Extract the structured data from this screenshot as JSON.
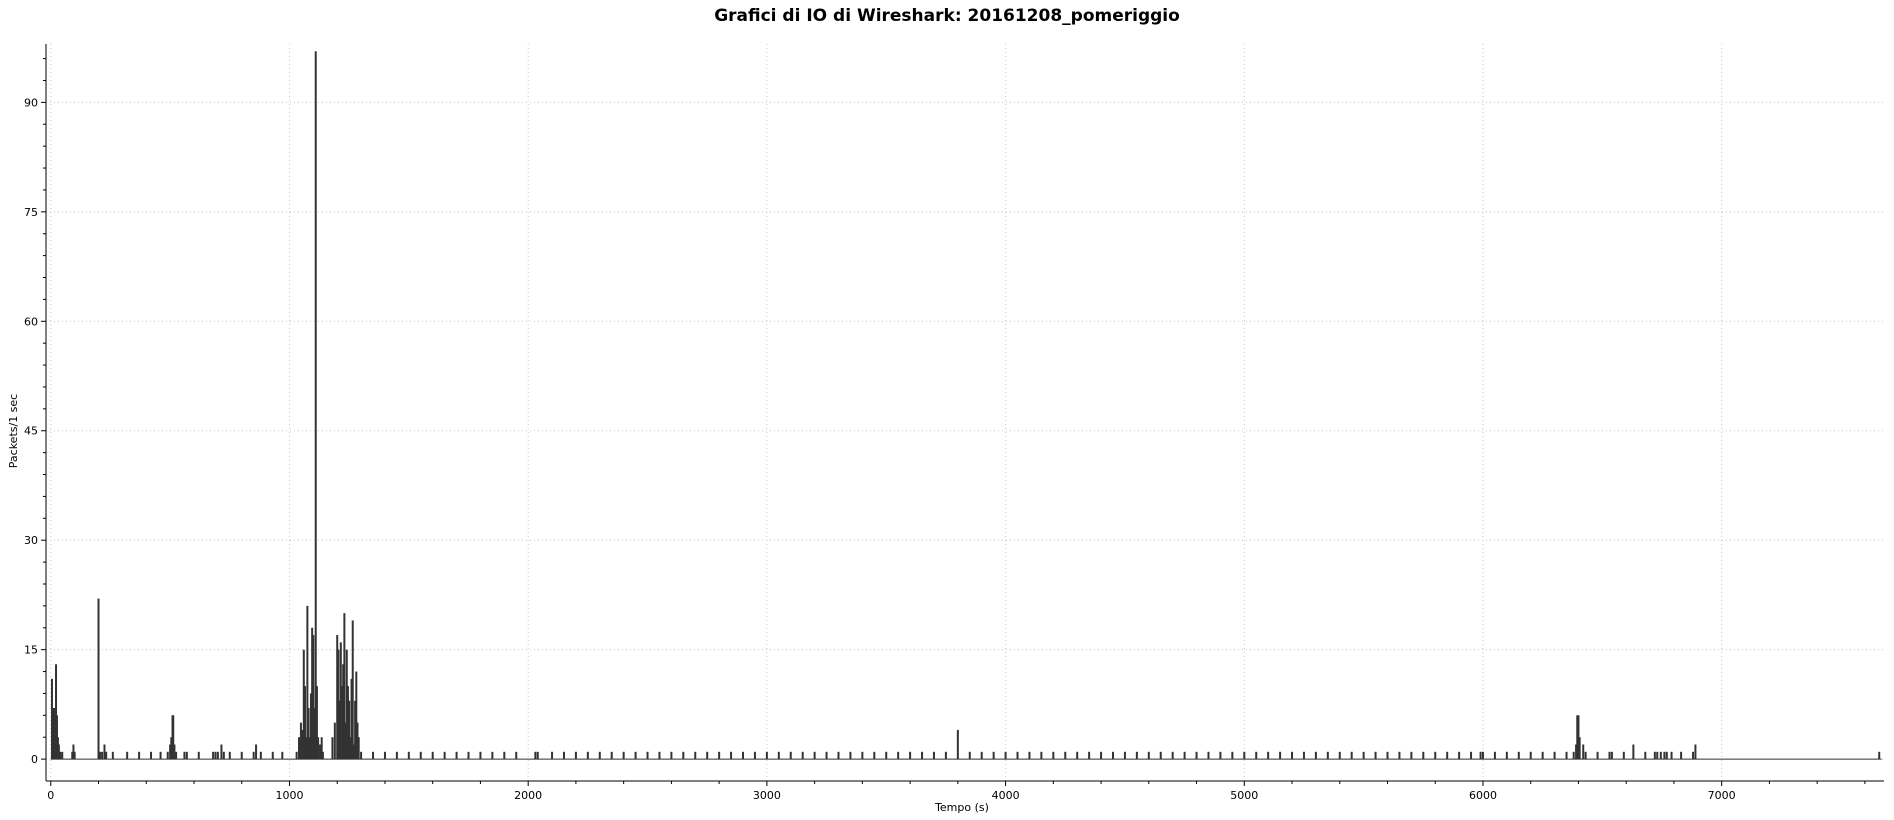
{
  "chart_data": {
    "type": "bar",
    "title": "Grafici di IO di Wireshark: 20161208_pomeriggio",
    "xlabel": "Tempo (s)",
    "ylabel": "Packets/1 sec",
    "xlim": [
      -20,
      7680
    ],
    "ylim": [
      -3,
      98
    ],
    "x_ticks": [
      0,
      1000,
      2000,
      3000,
      4000,
      5000,
      6000,
      7000
    ],
    "y_ticks": [
      0,
      15,
      30,
      45,
      60,
      75,
      90
    ],
    "grid": true,
    "series": [
      {
        "color": "#333333",
        "points": [
          [
            5,
            11
          ],
          [
            10,
            7
          ],
          [
            14,
            7
          ],
          [
            18,
            6
          ],
          [
            22,
            13
          ],
          [
            26,
            6
          ],
          [
            30,
            3
          ],
          [
            34,
            2
          ],
          [
            40,
            1
          ],
          [
            48,
            1
          ],
          [
            90,
            1
          ],
          [
            95,
            2
          ],
          [
            100,
            1
          ],
          [
            200,
            22
          ],
          [
            206,
            1
          ],
          [
            215,
            1
          ],
          [
            225,
            2
          ],
          [
            232,
            1
          ],
          [
            260,
            1
          ],
          [
            320,
            1
          ],
          [
            370,
            1
          ],
          [
            420,
            1
          ],
          [
            460,
            1
          ],
          [
            490,
            1
          ],
          [
            500,
            2
          ],
          [
            505,
            3
          ],
          [
            510,
            6
          ],
          [
            513,
            6
          ],
          [
            518,
            2
          ],
          [
            525,
            1
          ],
          [
            560,
            1
          ],
          [
            570,
            1
          ],
          [
            620,
            1
          ],
          [
            680,
            1
          ],
          [
            690,
            1
          ],
          [
            700,
            1
          ],
          [
            715,
            2
          ],
          [
            725,
            1
          ],
          [
            750,
            1
          ],
          [
            800,
            1
          ],
          [
            850,
            1
          ],
          [
            860,
            2
          ],
          [
            880,
            1
          ],
          [
            930,
            1
          ],
          [
            970,
            1
          ],
          [
            1030,
            1
          ],
          [
            1040,
            3
          ],
          [
            1048,
            5
          ],
          [
            1055,
            4
          ],
          [
            1060,
            15
          ],
          [
            1065,
            10
          ],
          [
            1070,
            3
          ],
          [
            1075,
            21
          ],
          [
            1080,
            7
          ],
          [
            1085,
            3
          ],
          [
            1090,
            9
          ],
          [
            1095,
            18
          ],
          [
            1100,
            17
          ],
          [
            1105,
            7
          ],
          [
            1110,
            97
          ],
          [
            1115,
            10
          ],
          [
            1120,
            3
          ],
          [
            1128,
            2
          ],
          [
            1135,
            3
          ],
          [
            1140,
            1
          ],
          [
            1180,
            3
          ],
          [
            1190,
            5
          ],
          [
            1200,
            17
          ],
          [
            1205,
            15
          ],
          [
            1210,
            8
          ],
          [
            1215,
            16
          ],
          [
            1220,
            10
          ],
          [
            1225,
            13
          ],
          [
            1230,
            20
          ],
          [
            1235,
            5
          ],
          [
            1240,
            15
          ],
          [
            1245,
            10
          ],
          [
            1250,
            8
          ],
          [
            1255,
            3
          ],
          [
            1260,
            11
          ],
          [
            1265,
            19
          ],
          [
            1270,
            2
          ],
          [
            1275,
            8
          ],
          [
            1280,
            12
          ],
          [
            1285,
            5
          ],
          [
            1290,
            3
          ],
          [
            1300,
            1
          ],
          [
            1350,
            1
          ],
          [
            1400,
            1
          ],
          [
            1450,
            1
          ],
          [
            1500,
            1
          ],
          [
            1550,
            1
          ],
          [
            1600,
            1
          ],
          [
            1650,
            1
          ],
          [
            1700,
            1
          ],
          [
            1750,
            1
          ],
          [
            1800,
            1
          ],
          [
            1850,
            1
          ],
          [
            1900,
            1
          ],
          [
            1950,
            1
          ],
          [
            2030,
            1
          ],
          [
            2040,
            1
          ],
          [
            2100,
            1
          ],
          [
            2150,
            1
          ],
          [
            2200,
            1
          ],
          [
            2250,
            1
          ],
          [
            2300,
            1
          ],
          [
            2350,
            1
          ],
          [
            2400,
            1
          ],
          [
            2450,
            1
          ],
          [
            2500,
            1
          ],
          [
            2550,
            1
          ],
          [
            2600,
            1
          ],
          [
            2650,
            1
          ],
          [
            2700,
            1
          ],
          [
            2750,
            1
          ],
          [
            2800,
            1
          ],
          [
            2850,
            1
          ],
          [
            2900,
            1
          ],
          [
            2950,
            1
          ],
          [
            3000,
            1
          ],
          [
            3050,
            1
          ],
          [
            3100,
            1
          ],
          [
            3150,
            1
          ],
          [
            3200,
            1
          ],
          [
            3250,
            1
          ],
          [
            3300,
            1
          ],
          [
            3350,
            1
          ],
          [
            3400,
            1
          ],
          [
            3450,
            1
          ],
          [
            3500,
            1
          ],
          [
            3550,
            1
          ],
          [
            3600,
            1
          ],
          [
            3650,
            1
          ],
          [
            3700,
            1
          ],
          [
            3750,
            1
          ],
          [
            3800,
            4
          ],
          [
            3850,
            1
          ],
          [
            3900,
            1
          ],
          [
            3950,
            1
          ],
          [
            4000,
            1
          ],
          [
            4050,
            1
          ],
          [
            4100,
            1
          ],
          [
            4150,
            1
          ],
          [
            4200,
            1
          ],
          [
            4250,
            1
          ],
          [
            4300,
            1
          ],
          [
            4350,
            1
          ],
          [
            4400,
            1
          ],
          [
            4450,
            1
          ],
          [
            4500,
            1
          ],
          [
            4550,
            1
          ],
          [
            4600,
            1
          ],
          [
            4650,
            1
          ],
          [
            4700,
            1
          ],
          [
            4750,
            1
          ],
          [
            4800,
            1
          ],
          [
            4850,
            1
          ],
          [
            4900,
            1
          ],
          [
            4950,
            1
          ],
          [
            5000,
            1
          ],
          [
            5050,
            1
          ],
          [
            5100,
            1
          ],
          [
            5150,
            1
          ],
          [
            5200,
            1
          ],
          [
            5250,
            1
          ],
          [
            5300,
            1
          ],
          [
            5350,
            1
          ],
          [
            5400,
            1
          ],
          [
            5450,
            1
          ],
          [
            5500,
            1
          ],
          [
            5550,
            1
          ],
          [
            5600,
            1
          ],
          [
            5650,
            1
          ],
          [
            5700,
            1
          ],
          [
            5750,
            1
          ],
          [
            5800,
            1
          ],
          [
            5850,
            1
          ],
          [
            5900,
            1
          ],
          [
            5950,
            1
          ],
          [
            5990,
            1
          ],
          [
            6000,
            1
          ],
          [
            6050,
            1
          ],
          [
            6100,
            1
          ],
          [
            6150,
            1
          ],
          [
            6200,
            1
          ],
          [
            6250,
            1
          ],
          [
            6300,
            1
          ],
          [
            6350,
            1
          ],
          [
            6380,
            1
          ],
          [
            6390,
            2
          ],
          [
            6395,
            6
          ],
          [
            6400,
            6
          ],
          [
            6405,
            3
          ],
          [
            6420,
            2
          ],
          [
            6430,
            1
          ],
          [
            6480,
            1
          ],
          [
            6530,
            1
          ],
          [
            6540,
            1
          ],
          [
            6590,
            1
          ],
          [
            6630,
            2
          ],
          [
            6680,
            1
          ],
          [
            6720,
            1
          ],
          [
            6730,
            1
          ],
          [
            6745,
            1
          ],
          [
            6760,
            1
          ],
          [
            6770,
            1
          ],
          [
            6790,
            1
          ],
          [
            6830,
            1
          ],
          [
            6880,
            1
          ],
          [
            6890,
            2
          ],
          [
            7660,
            1
          ]
        ]
      }
    ]
  }
}
